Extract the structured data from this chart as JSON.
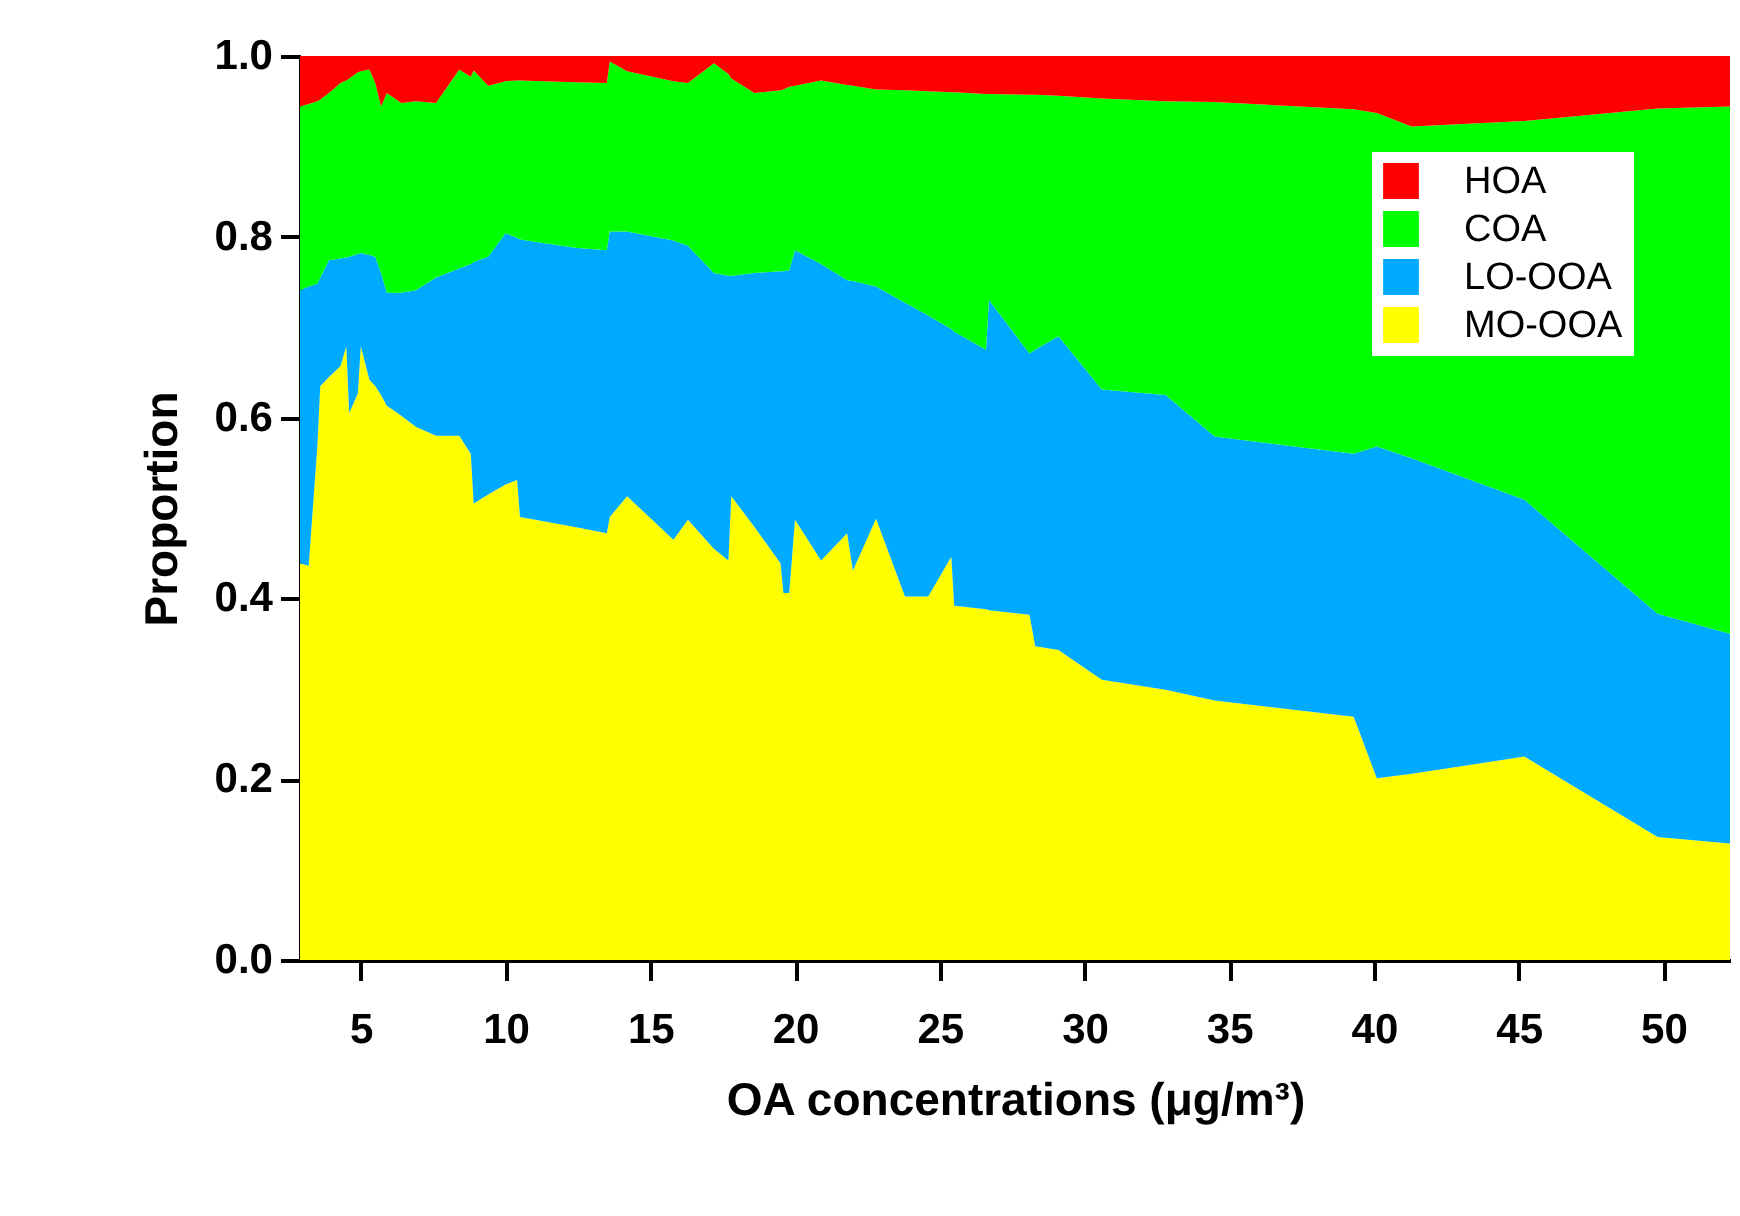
{
  "chart_data": {
    "type": "area",
    "stacked": true,
    "xlabel": "OA concentrations (μg/m³)",
    "ylabel": "Proportion",
    "x": [
      2.9,
      3.2,
      3.5,
      3.6,
      3.9,
      4.3,
      4.5,
      4.6,
      4.9,
      5.0,
      5.3,
      5.5,
      5.7,
      5.9,
      6.4,
      6.9,
      7.6,
      8.4,
      8.8,
      8.9,
      9.4,
      10.0,
      10.4,
      10.5,
      12.4,
      13.5,
      13.6,
      14.2,
      15.8,
      16.3,
      17.2,
      17.7,
      17.8,
      18.6,
      19.5,
      19.6,
      19.8,
      20.0,
      20.9,
      21.8,
      22.0,
      22.8,
      23.8,
      24.6,
      25.4,
      25.5,
      26.6,
      26.7,
      28.1,
      28.3,
      29.1,
      30.6,
      32.8,
      34.5,
      39.3,
      40.1,
      41.3,
      45.2,
      49.8,
      52.3
    ],
    "series": [
      {
        "name": "MO-OOA",
        "color": "#ffff00",
        "values": [
          0.439,
          0.436,
          0.569,
          0.635,
          0.645,
          0.657,
          0.679,
          0.605,
          0.627,
          0.679,
          0.642,
          0.635,
          0.625,
          0.613,
          0.602,
          0.59,
          0.58,
          0.58,
          0.56,
          0.505,
          0.515,
          0.526,
          0.531,
          0.49,
          0.479,
          0.472,
          0.49,
          0.513,
          0.465,
          0.487,
          0.455,
          0.442,
          0.513,
          0.479,
          0.439,
          0.406,
          0.406,
          0.487,
          0.442,
          0.472,
          0.431,
          0.488,
          0.402,
          0.402,
          0.446,
          0.392,
          0.388,
          0.387,
          0.382,
          0.347,
          0.343,
          0.31,
          0.299,
          0.287,
          0.269,
          0.201,
          0.206,
          0.225,
          0.136,
          0.129
        ]
      },
      {
        "name": "LO-OOA",
        "color": "#00aaff",
        "values": [
          0.302,
          0.309,
          0.179,
          0.12,
          0.129,
          0.119,
          0.098,
          0.173,
          0.154,
          0.103,
          0.138,
          0.143,
          0.135,
          0.125,
          0.136,
          0.151,
          0.175,
          0.185,
          0.21,
          0.267,
          0.263,
          0.278,
          0.268,
          0.307,
          0.309,
          0.313,
          0.316,
          0.293,
          0.331,
          0.303,
          0.305,
          0.315,
          0.244,
          0.281,
          0.323,
          0.356,
          0.357,
          0.298,
          0.328,
          0.28,
          0.32,
          0.257,
          0.325,
          0.311,
          0.252,
          0.303,
          0.287,
          0.343,
          0.289,
          0.328,
          0.347,
          0.321,
          0.326,
          0.292,
          0.291,
          0.367,
          0.349,
          0.284,
          0.247,
          0.232
        ]
      },
      {
        "name": "COA",
        "color": "#00ff00",
        "values": [
          0.203,
          0.202,
          0.202,
          0.197,
          0.185,
          0.194,
          0.196,
          0.197,
          0.201,
          0.201,
          0.205,
          0.192,
          0.184,
          0.221,
          0.21,
          0.209,
          0.193,
          0.22,
          0.207,
          0.212,
          0.189,
          0.168,
          0.174,
          0.176,
          0.183,
          0.185,
          0.188,
          0.177,
          0.176,
          0.18,
          0.232,
          0.223,
          0.218,
          0.199,
          0.2,
          0.201,
          0.203,
          0.182,
          0.203,
          0.216,
          0.216,
          0.218,
          0.235,
          0.248,
          0.262,
          0.265,
          0.283,
          0.228,
          0.286,
          0.282,
          0.266,
          0.322,
          0.325,
          0.37,
          0.381,
          0.369,
          0.367,
          0.419,
          0.559,
          0.583
        ]
      },
      {
        "name": "HOA",
        "color": "#ff0000",
        "values": [
          0.056,
          0.053,
          0.05,
          0.048,
          0.041,
          0.03,
          0.027,
          0.025,
          0.018,
          0.017,
          0.015,
          0.03,
          0.056,
          0.041,
          0.052,
          0.05,
          0.052,
          0.015,
          0.023,
          0.016,
          0.033,
          0.028,
          0.027,
          0.027,
          0.029,
          0.03,
          0.006,
          0.017,
          0.028,
          0.03,
          0.008,
          0.02,
          0.025,
          0.041,
          0.038,
          0.037,
          0.034,
          0.033,
          0.027,
          0.032,
          0.033,
          0.037,
          0.038,
          0.039,
          0.04,
          0.04,
          0.042,
          0.042,
          0.043,
          0.043,
          0.044,
          0.047,
          0.05,
          0.051,
          0.059,
          0.063,
          0.078,
          0.072,
          0.058,
          0.056
        ]
      }
    ],
    "xlim": [
      2.9,
      52.3
    ],
    "xticks": [
      5,
      10,
      15,
      20,
      25,
      30,
      35,
      40,
      45,
      50
    ],
    "ylim": [
      0,
      1
    ],
    "yticks": [
      {
        "value": 0,
        "label": "0.0"
      },
      0.2,
      0.4,
      0.6,
      0.8,
      {
        "value": 1,
        "label": "1.0"
      }
    ],
    "grid": false,
    "legend": "top right"
  }
}
